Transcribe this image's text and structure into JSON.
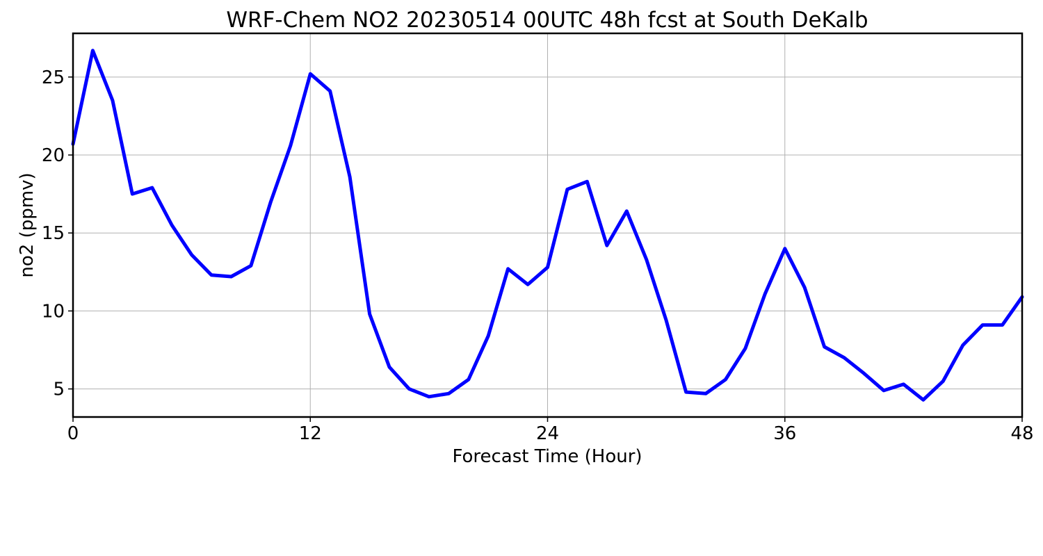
{
  "chart_data": {
    "type": "line",
    "title": "WRF-Chem NO2  20230514 00UTC 48h fcst at South DeKalb",
    "xlabel": "Forecast Time (Hour)",
    "ylabel": "no2  (ppmv)",
    "xlim": [
      0,
      48
    ],
    "ylim": [
      3.2,
      27.8
    ],
    "xticks": [
      0,
      12,
      24,
      36,
      48
    ],
    "yticks": [
      5,
      10,
      15,
      20,
      25
    ],
    "grid": true,
    "line_color": "#0000ff",
    "series": [
      {
        "x": [
          0,
          1,
          2,
          3,
          4,
          5,
          6,
          7,
          8,
          9,
          10,
          11,
          12,
          13,
          14,
          15,
          16,
          17,
          18,
          19,
          20,
          21,
          22,
          23,
          24,
          25,
          26,
          27,
          28,
          29,
          30,
          31,
          32,
          33,
          34,
          35,
          36,
          37,
          38,
          39,
          40,
          41,
          42,
          43,
          44,
          45,
          46,
          47,
          48
        ],
        "values": [
          20.7,
          26.7,
          23.5,
          17.5,
          17.9,
          15.5,
          13.6,
          12.3,
          12.2,
          12.9,
          17.0,
          20.6,
          25.2,
          24.1,
          18.6,
          9.8,
          6.4,
          5.0,
          4.5,
          4.7,
          5.6,
          8.4,
          12.7,
          11.7,
          12.8,
          17.8,
          18.3,
          14.2,
          16.4,
          13.3,
          9.4,
          4.8,
          4.7,
          5.6,
          7.6,
          11.1,
          14.0,
          11.5,
          7.7,
          7.0,
          6.0,
          4.9,
          5.3,
          4.3,
          5.5,
          7.8,
          9.1,
          9.1,
          10.9
        ]
      }
    ]
  }
}
